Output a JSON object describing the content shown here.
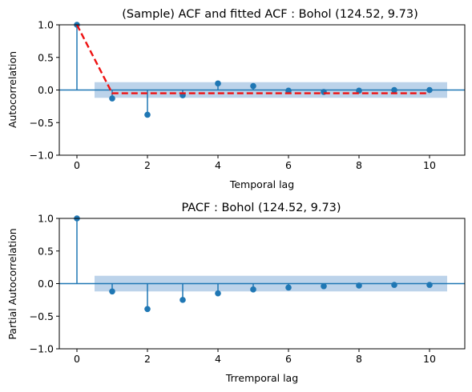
{
  "colors": {
    "stem": "#1f77b4",
    "band": "#bcd3ea",
    "fit": "#ee1111",
    "frame": "#000000"
  },
  "chart_data": [
    {
      "type": "scatter",
      "title": "(Sample) ACF and fitted ACF : Bohol (124.52, 9.73)",
      "xlabel": "Temporal lag",
      "ylabel": "Autocorrelation",
      "xlim": [
        -0.5,
        11
      ],
      "ylim": [
        -1.0,
        1.0
      ],
      "xticks": [
        0,
        2,
        4,
        6,
        8,
        10
      ],
      "xtick_labels": [
        "0",
        "2",
        "4",
        "6",
        "8",
        "10"
      ],
      "yticks": [
        -1.0,
        -0.5,
        0.0,
        0.5,
        1.0
      ],
      "ytick_labels": [
        "−1.0",
        "−0.5",
        "0.0",
        "0.5",
        "1.0"
      ],
      "x": [
        0,
        1,
        2,
        3,
        4,
        5,
        6,
        7,
        8,
        9,
        10
      ],
      "values": [
        1.0,
        -0.13,
        -0.38,
        -0.08,
        0.1,
        0.06,
        -0.01,
        -0.03,
        -0.01,
        0.0,
        0.0
      ],
      "confidence_band": {
        "x": [
          0.5,
          10.5
        ],
        "lower": -0.12,
        "upper": 0.12
      },
      "fitted": {
        "x": [
          0,
          1,
          10
        ],
        "values": [
          1.0,
          -0.05,
          -0.05
        ],
        "style": "dashed"
      },
      "grid": false
    },
    {
      "type": "scatter",
      "title": "PACF : Bohol (124.52, 9.73)",
      "xlabel": "Trremporal lag",
      "ylabel": "Partial Autocorrelation",
      "xlim": [
        -0.5,
        11
      ],
      "ylim": [
        -1.0,
        1.0
      ],
      "xticks": [
        0,
        2,
        4,
        6,
        8,
        10
      ],
      "xtick_labels": [
        "0",
        "2",
        "4",
        "6",
        "8",
        "10"
      ],
      "yticks": [
        -1.0,
        -0.5,
        0.0,
        0.5,
        1.0
      ],
      "ytick_labels": [
        "−1.0",
        "−0.5",
        "0.0",
        "0.5",
        "1.0"
      ],
      "x": [
        0,
        1,
        2,
        3,
        4,
        5,
        6,
        7,
        8,
        9,
        10
      ],
      "values": [
        1.0,
        -0.12,
        -0.39,
        -0.25,
        -0.15,
        -0.09,
        -0.06,
        -0.04,
        -0.03,
        -0.02,
        -0.02
      ],
      "confidence_band": {
        "x": [
          0.5,
          10.5
        ],
        "lower": -0.12,
        "upper": 0.12
      },
      "grid": false
    }
  ]
}
